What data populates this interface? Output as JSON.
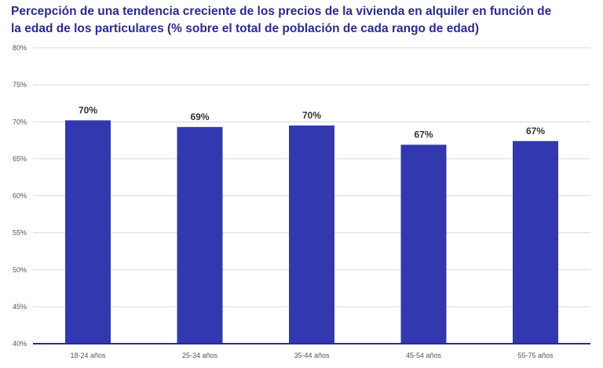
{
  "chart_data": {
    "type": "bar",
    "title_lines": [
      "Percepción de una tendencia creciente de los precios de la vivienda en alquiler en función de",
      "la edad de los particulares (% sobre el total de población de cada rango de edad)"
    ],
    "categories": [
      "18-24 años",
      "25-34 años",
      "35-44 años",
      "45-54 años",
      "55-75 años"
    ],
    "values": [
      70.2,
      69.3,
      69.5,
      66.9,
      67.4
    ],
    "data_labels": [
      "70%",
      "69%",
      "70%",
      "67%",
      "67%"
    ],
    "ylim": [
      40,
      80
    ],
    "yticks": [
      40,
      45,
      50,
      55,
      60,
      65,
      70,
      75,
      80
    ],
    "ytick_labels": [
      "40%",
      "45%",
      "50%",
      "55%",
      "60%",
      "65%",
      "70%",
      "75%",
      "80%"
    ],
    "xlabel": "",
    "ylabel": "",
    "grid": true,
    "legend": "none",
    "colors": {
      "bar": "#3238b0",
      "axis": "#2b2b8f",
      "grid": "#d9d9d9",
      "title": "#2b2b8f"
    }
  }
}
